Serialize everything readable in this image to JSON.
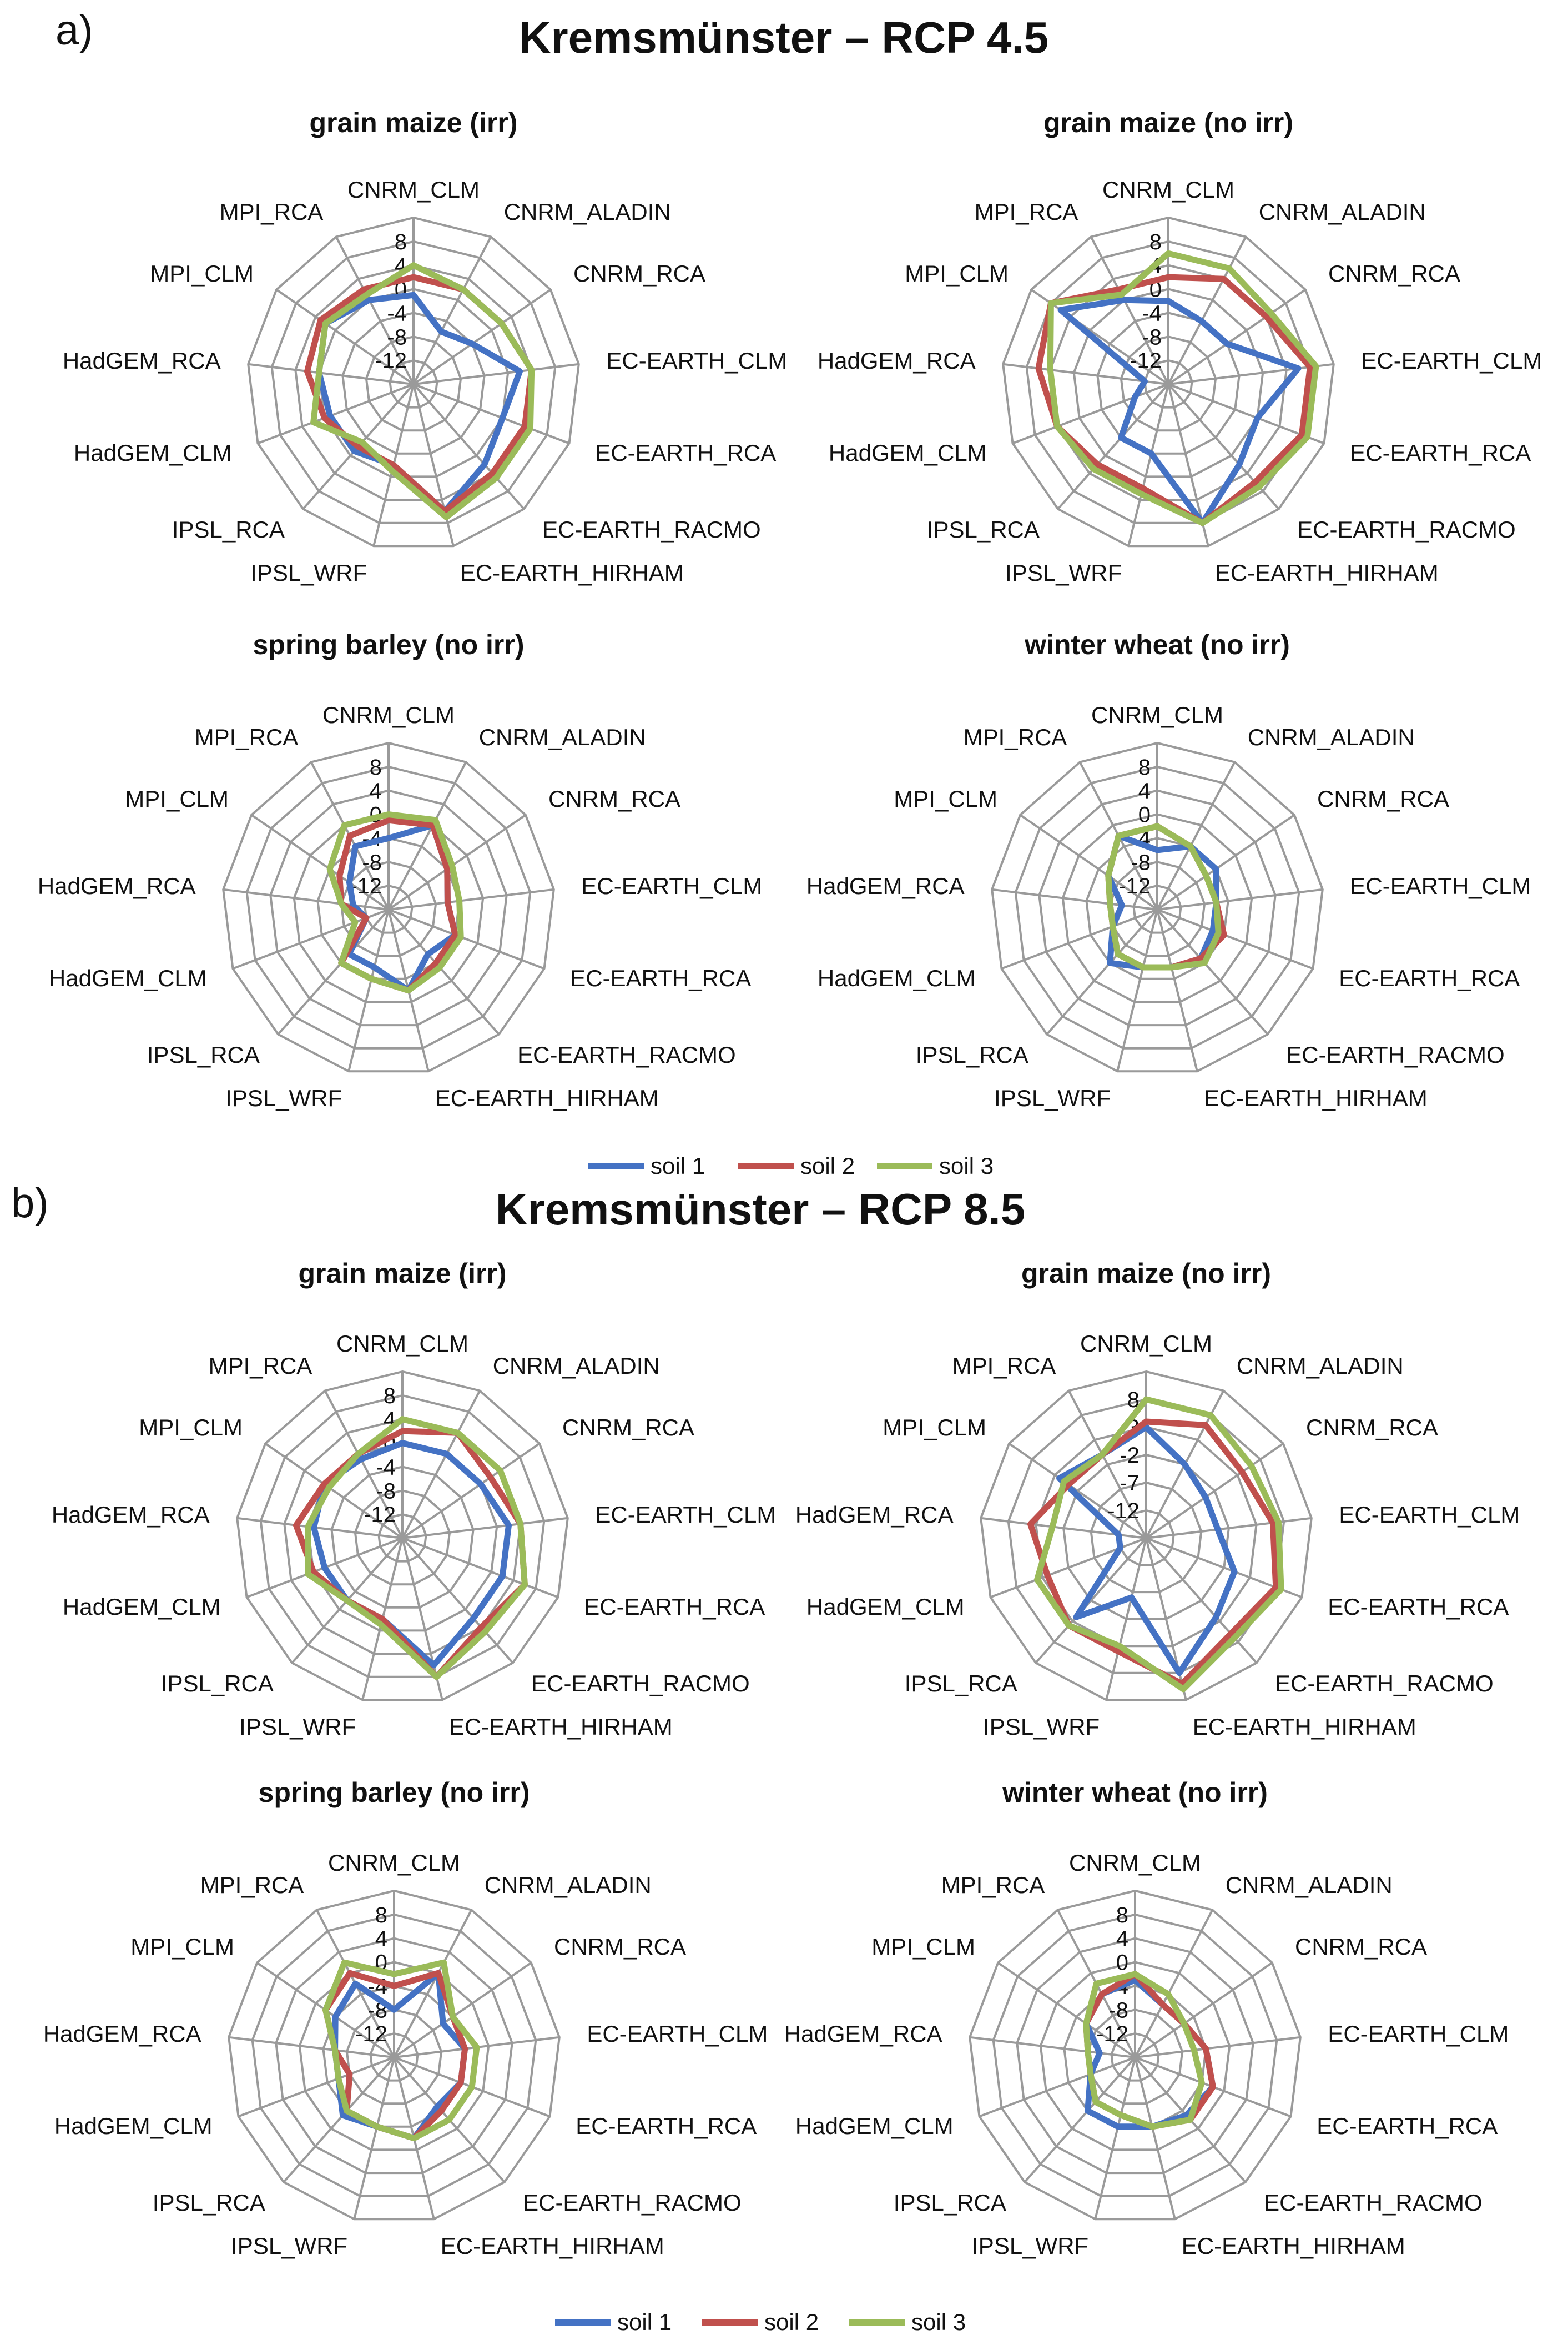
{
  "panels": [
    {
      "letter": "a)",
      "title": "Kremsmünster – RCP 4.5"
    },
    {
      "letter": "b)",
      "title": "Kremsmünster – RCP 8.5"
    }
  ],
  "legend": [
    {
      "label": "soil 1",
      "color": "#4472C4"
    },
    {
      "label": "soil 2",
      "color": "#C0504D"
    },
    {
      "label": "soil 3",
      "color": "#9BBB59"
    }
  ],
  "chart_data": [
    {
      "type": "radar",
      "panel": "a)",
      "title": "grain maize (irr)",
      "categories": [
        "CNRM_CLM",
        "CNRM_ALADIN",
        "CNRM_RCA",
        "EC-EARTH_CLM",
        "EC-EARTH_RCA",
        "EC-EARTH_RACMO",
        "EC-EARTH_HIRHAM",
        "IPSL_WRF",
        "IPSL_RCA",
        "HadGEM_CLM",
        "HadGEM_RCA",
        "MPI_CLM",
        "MPI_RCA"
      ],
      "ticks": [
        "8",
        "4",
        "0",
        "-4",
        "-8",
        "-12"
      ],
      "range": [
        -16,
        12
      ],
      "series": [
        {
          "name": "soil 1",
          "values": [
            -1,
            -6,
            -4,
            2,
            0,
            2,
            6,
            -2,
            -1,
            -1,
            0,
            2,
            0
          ]
        },
        {
          "name": "soil 2",
          "values": [
            2,
            2,
            2,
            4,
            4,
            4,
            6,
            -2,
            -2,
            0,
            2,
            3,
            2
          ]
        },
        {
          "name": "soil 3",
          "values": [
            4,
            2,
            2,
            4,
            5,
            5,
            7,
            -1,
            -3,
            2,
            0,
            2,
            1
          ]
        }
      ]
    },
    {
      "type": "radar",
      "panel": "a)",
      "title": "grain maize (no irr)",
      "categories": [
        "CNRM_CLM",
        "CNRM_ALADIN",
        "CNRM_RCA",
        "EC-EARTH_CLM",
        "EC-EARTH_RCA",
        "EC-EARTH_RACMO",
        "EC-EARTH_HIRHAM",
        "IPSL_WRF",
        "IPSL_RCA",
        "HadGEM_CLM",
        "HadGEM_RCA",
        "MPI_CLM",
        "MPI_RCA"
      ],
      "ticks": [
        "8",
        "4",
        "0",
        "-4",
        "-8",
        "-12"
      ],
      "range": [
        -16,
        12
      ],
      "series": [
        {
          "name": "soil 1",
          "values": [
            -2,
            -4,
            -4,
            6,
            0,
            2,
            8,
            -4,
            -4,
            -10,
            -12,
            6,
            0
          ]
        },
        {
          "name": "soil 2",
          "values": [
            2,
            4,
            4,
            8,
            8,
            6,
            8,
            2,
            2,
            4,
            6,
            8,
            2
          ]
        },
        {
          "name": "soil 3",
          "values": [
            6,
            6,
            5,
            9,
            9,
            7,
            8,
            3,
            3,
            4,
            4,
            8,
            1
          ]
        }
      ]
    },
    {
      "type": "radar",
      "panel": "a)",
      "title": "spring barley (no irr)",
      "categories": [
        "CNRM_CLM",
        "CNRM_ALADIN",
        "CNRM_RCA",
        "EC-EARTH_CLM",
        "EC-EARTH_RCA",
        "EC-EARTH_RACMO",
        "EC-EARTH_HIRHAM",
        "IPSL_WRF",
        "IPSL_RCA",
        "HadGEM_CLM",
        "HadGEM_RCA",
        "MPI_CLM",
        "MPI_RCA"
      ],
      "ticks": [
        "8",
        "4",
        "0",
        "-4",
        "-8",
        "-12"
      ],
      "range": [
        -16,
        12
      ],
      "series": [
        {
          "name": "soil 1",
          "values": [
            -4,
            0,
            -4,
            -6,
            -4,
            -6,
            -2,
            -6,
            -6,
            -12,
            -10,
            -8,
            -4
          ]
        },
        {
          "name": "soil 2",
          "values": [
            -1,
            0,
            -4,
            -6,
            -4,
            -4,
            -2,
            -4,
            -4,
            -12,
            -8,
            -6,
            -2
          ]
        },
        {
          "name": "soil 3",
          "values": [
            0,
            1,
            -3,
            -4,
            -3,
            -3,
            -2,
            -4,
            -4,
            -10,
            -8,
            -4,
            0
          ]
        }
      ]
    },
    {
      "type": "radar",
      "panel": "a)",
      "title": "winter wheat (no irr)",
      "categories": [
        "CNRM_CLM",
        "CNRM_ALADIN",
        "CNRM_RCA",
        "EC-EARTH_CLM",
        "EC-EARTH_RCA",
        "EC-EARTH_RACMO",
        "EC-EARTH_HIRHAM",
        "IPSL_WRF",
        "IPSL_RCA",
        "HadGEM_CLM",
        "HadGEM_RCA",
        "MPI_CLM",
        "MPI_RCA"
      ],
      "ticks": [
        "8",
        "4",
        "0",
        "-4",
        "-8",
        "-12"
      ],
      "range": [
        -16,
        12
      ],
      "series": [
        {
          "name": "soil 1",
          "values": [
            -6,
            -4,
            -4,
            -6,
            -6,
            -5,
            -6,
            -6,
            -4,
            -8,
            -10,
            -6,
            -2
          ]
        },
        {
          "name": "soil 2",
          "values": [
            -2,
            -4,
            -6,
            -6,
            -4,
            -5,
            -6,
            -6,
            -6,
            -8,
            -8,
            -6,
            -2
          ]
        },
        {
          "name": "soil 3",
          "values": [
            -2,
            -4,
            -6,
            -6,
            -5,
            -4,
            -6,
            -6,
            -6,
            -8,
            -8,
            -6,
            -2
          ]
        }
      ]
    },
    {
      "type": "radar",
      "panel": "b)",
      "title": "grain maize (irr)",
      "categories": [
        "CNRM_CLM",
        "CNRM_ALADIN",
        "CNRM_RCA",
        "EC-EARTH_CLM",
        "EC-EARTH_RCA",
        "EC-EARTH_RACMO",
        "EC-EARTH_HIRHAM",
        "IPSL_WRF",
        "IPSL_RCA",
        "HadGEM_CLM",
        "HadGEM_RCA",
        "MPI_CLM",
        "MPI_RCA"
      ],
      "ticks": [
        "8",
        "4",
        "0",
        "-4",
        "-8",
        "-12"
      ],
      "range": [
        -16,
        12
      ],
      "series": [
        {
          "name": "soil 1",
          "values": [
            0,
            0,
            0,
            2,
            2,
            2,
            6,
            -2,
            -2,
            -2,
            -1,
            0,
            -1
          ]
        },
        {
          "name": "soil 2",
          "values": [
            2,
            4,
            2,
            4,
            6,
            4,
            8,
            -2,
            -2,
            0,
            2,
            0,
            0
          ]
        },
        {
          "name": "soil 3",
          "values": [
            4,
            4,
            4,
            4,
            6,
            5,
            8,
            -1,
            -2,
            1,
            0,
            -1,
            0
          ]
        }
      ]
    },
    {
      "type": "radar",
      "panel": "b)",
      "title": "grain maize (no irr)",
      "categories": [
        "CNRM_CLM",
        "CNRM_ALADIN",
        "CNRM_RCA",
        "EC-EARTH_CLM",
        "EC-EARTH_RCA",
        "EC-EARTH_RACMO",
        "EC-EARTH_HIRHAM",
        "IPSL_WRF",
        "IPSL_RCA",
        "HadGEM_CLM",
        "HadGEM_RCA",
        "MPI_CLM",
        "MPI_RCA"
      ],
      "ticks": [
        "8",
        "3",
        "-2",
        "-7",
        "-12"
      ],
      "range": [
        -17,
        13
      ],
      "series": [
        {
          "name": "soil 1",
          "values": [
            3,
            -2,
            -4,
            -4,
            0,
            2,
            8,
            -6,
            2,
            -12,
            -12,
            2,
            0
          ]
        },
        {
          "name": "soil 2",
          "values": [
            4,
            6,
            4,
            6,
            8,
            6,
            10,
            4,
            4,
            2,
            4,
            0,
            0
          ]
        },
        {
          "name": "soil 3",
          "values": [
            8,
            8,
            6,
            7,
            9,
            7,
            11,
            3,
            4,
            4,
            0,
            1,
            0
          ]
        }
      ]
    },
    {
      "type": "radar",
      "panel": "b)",
      "title": "spring barley (no irr)",
      "categories": [
        "CNRM_CLM",
        "CNRM_ALADIN",
        "CNRM_RCA",
        "EC-EARTH_CLM",
        "EC-EARTH_RCA",
        "EC-EARTH_RACMO",
        "EC-EARTH_HIRHAM",
        "IPSL_WRF",
        "IPSL_RCA",
        "HadGEM_CLM",
        "HadGEM_RCA",
        "MPI_CLM",
        "MPI_RCA"
      ],
      "ticks": [
        "8",
        "4",
        "0",
        "-4",
        "-8",
        "-12"
      ],
      "range": [
        -16,
        12
      ],
      "series": [
        {
          "name": "soil 1",
          "values": [
            -8,
            0,
            -6,
            -4,
            -4,
            -5,
            -2,
            -4,
            -3,
            -6,
            -6,
            -4,
            -2
          ]
        },
        {
          "name": "soil 2",
          "values": [
            -4,
            0,
            -4,
            -4,
            -4,
            -4,
            -2,
            -4,
            -4,
            -8,
            -6,
            -2,
            0
          ]
        },
        {
          "name": "soil 3",
          "values": [
            -2,
            2,
            -4,
            -2,
            -2,
            -2,
            -2,
            -4,
            -4,
            -6,
            -6,
            -2,
            2
          ]
        }
      ]
    },
    {
      "type": "radar",
      "panel": "b)",
      "title": "winter wheat (no irr)",
      "categories": [
        "CNRM_CLM",
        "CNRM_ALADIN",
        "CNRM_RCA",
        "EC-EARTH_CLM",
        "EC-EARTH_RCA",
        "EC-EARTH_RACMO",
        "EC-EARTH_HIRHAM",
        "IPSL_WRF",
        "IPSL_RCA",
        "HadGEM_CLM",
        "HadGEM_RCA",
        "MPI_CLM",
        "MPI_RCA"
      ],
      "ticks": [
        "8",
        "4",
        "0",
        "-4",
        "-8",
        "-12"
      ],
      "range": [
        -16,
        12
      ],
      "series": [
        {
          "name": "soil 1",
          "values": [
            -3,
            -6,
            -6,
            -4,
            -2,
            -3,
            -4,
            -4,
            -4,
            -8,
            -10,
            -6,
            -4
          ]
        },
        {
          "name": "soil 2",
          "values": [
            -2,
            -6,
            -6,
            -4,
            -2,
            -2,
            -4,
            -6,
            -6,
            -8,
            -8,
            -6,
            -4
          ]
        },
        {
          "name": "soil 3",
          "values": [
            -2,
            -4,
            -6,
            -6,
            -4,
            -2,
            -4,
            -6,
            -6,
            -8,
            -8,
            -6,
            -2
          ]
        }
      ]
    }
  ]
}
